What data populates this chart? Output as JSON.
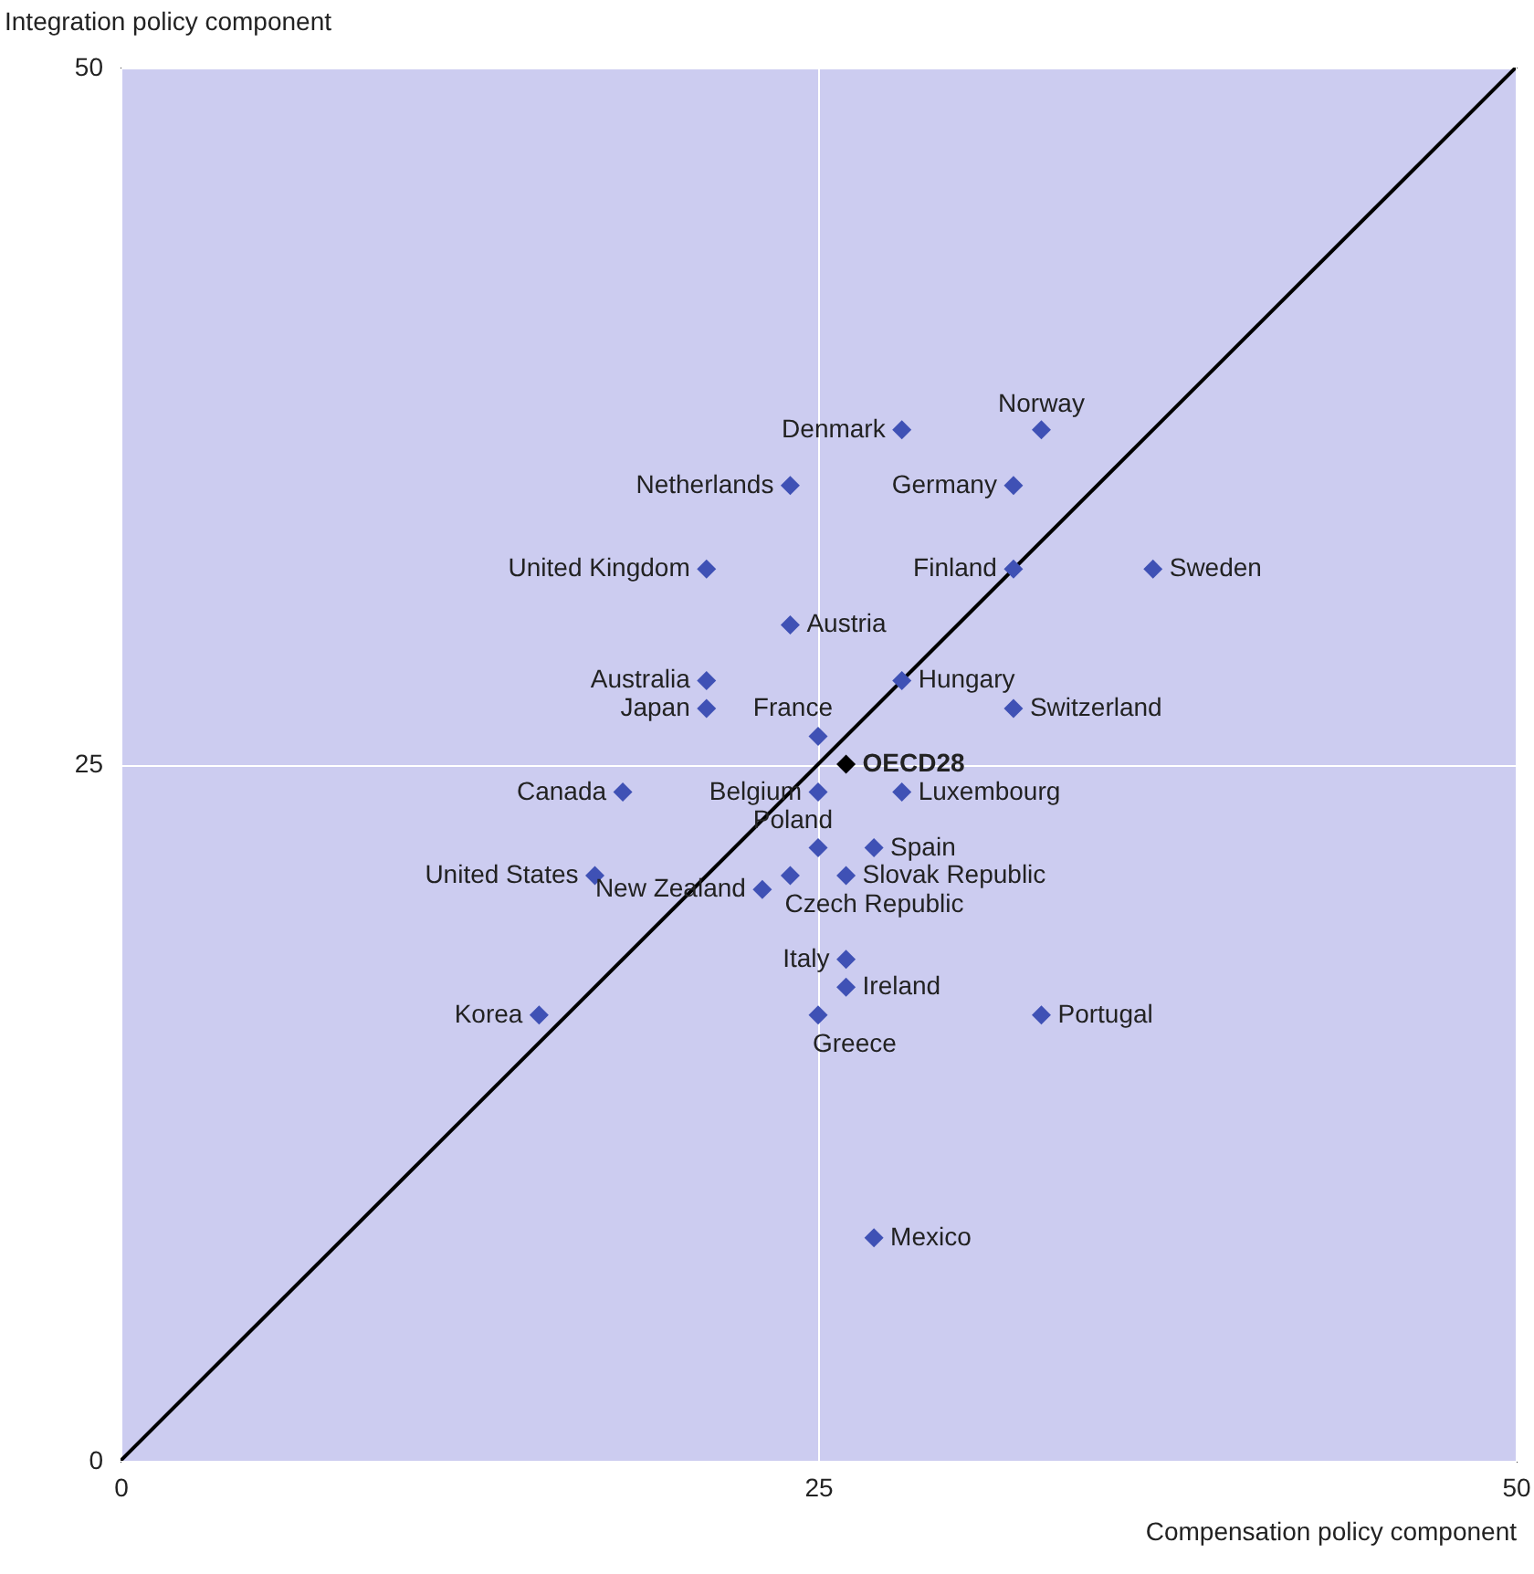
{
  "chart_data": {
    "type": "scatter",
    "xlabel": "Compensation policy component",
    "ylabel": "Integration policy component",
    "xlim": [
      0,
      50
    ],
    "ylim": [
      0,
      50
    ],
    "xticks": [
      0,
      25,
      50
    ],
    "yticks": [
      0,
      25,
      50
    ],
    "grid": true,
    "marker": "diamond",
    "series": [
      {
        "type": "line",
        "color": "#000000",
        "marker": "none",
        "x": [
          0,
          50
        ],
        "values": [
          0,
          50
        ]
      },
      {
        "name": "Denmark",
        "color": "#3f51b5",
        "x": [
          28
        ],
        "values": [
          37
        ]
      },
      {
        "name": "Norway",
        "color": "#3f51b5",
        "x": [
          33
        ],
        "values": [
          37
        ]
      },
      {
        "name": "Netherlands",
        "color": "#3f51b5",
        "x": [
          24
        ],
        "values": [
          35
        ]
      },
      {
        "name": "Germany",
        "color": "#3f51b5",
        "x": [
          32
        ],
        "values": [
          35
        ]
      },
      {
        "name": "United Kingdom",
        "color": "#3f51b5",
        "x": [
          21
        ],
        "values": [
          32
        ]
      },
      {
        "name": "Finland",
        "color": "#3f51b5",
        "x": [
          32
        ],
        "values": [
          32
        ]
      },
      {
        "name": "Sweden",
        "color": "#3f51b5",
        "x": [
          37
        ],
        "values": [
          32
        ]
      },
      {
        "name": "Austria",
        "color": "#3f51b5",
        "x": [
          24
        ],
        "values": [
          30
        ]
      },
      {
        "name": "Australia",
        "color": "#3f51b5",
        "x": [
          21
        ],
        "values": [
          28
        ]
      },
      {
        "name": "Hungary",
        "color": "#3f51b5",
        "x": [
          28
        ],
        "values": [
          28
        ]
      },
      {
        "name": "Japan",
        "color": "#3f51b5",
        "x": [
          21
        ],
        "values": [
          27
        ]
      },
      {
        "name": "Switzerland",
        "color": "#3f51b5",
        "x": [
          32
        ],
        "values": [
          27
        ]
      },
      {
        "name": "France",
        "color": "#3f51b5",
        "x": [
          25
        ],
        "values": [
          26
        ]
      },
      {
        "name": "OECD28",
        "color": "#000000",
        "x": [
          26
        ],
        "values": [
          25
        ]
      },
      {
        "name": "Canada",
        "color": "#3f51b5",
        "x": [
          18
        ],
        "values": [
          24
        ]
      },
      {
        "name": "Belgium",
        "color": "#3f51b5",
        "x": [
          25
        ],
        "values": [
          24
        ]
      },
      {
        "name": "Luxembourg",
        "color": "#3f51b5",
        "x": [
          28
        ],
        "values": [
          24
        ]
      },
      {
        "name": "Poland",
        "color": "#3f51b5",
        "x": [
          25
        ],
        "values": [
          22
        ]
      },
      {
        "name": "Spain",
        "color": "#3f51b5",
        "x": [
          27
        ],
        "values": [
          22
        ]
      },
      {
        "name": "United States",
        "color": "#3f51b5",
        "x": [
          17
        ],
        "values": [
          21
        ]
      },
      {
        "name": "New Zealand",
        "color": "#3f51b5",
        "x": [
          23
        ],
        "values": [
          20.5
        ]
      },
      {
        "name": "Czech Republic",
        "color": "#3f51b5",
        "x": [
          24
        ],
        "values": [
          21
        ]
      },
      {
        "name": "Slovak Republic",
        "color": "#3f51b5",
        "x": [
          26
        ],
        "values": [
          21
        ]
      },
      {
        "name": "Italy",
        "color": "#3f51b5",
        "x": [
          26
        ],
        "values": [
          18
        ]
      },
      {
        "name": "Ireland",
        "color": "#3f51b5",
        "x": [
          26
        ],
        "values": [
          17
        ]
      },
      {
        "name": "Korea",
        "color": "#3f51b5",
        "x": [
          15
        ],
        "values": [
          16
        ]
      },
      {
        "name": "Greece",
        "color": "#3f51b5",
        "x": [
          25
        ],
        "values": [
          16
        ]
      },
      {
        "name": "Portugal",
        "color": "#3f51b5",
        "x": [
          33
        ],
        "values": [
          16
        ]
      },
      {
        "name": "Mexico",
        "color": "#3f51b5",
        "x": [
          27
        ],
        "values": [
          8
        ]
      }
    ]
  }
}
